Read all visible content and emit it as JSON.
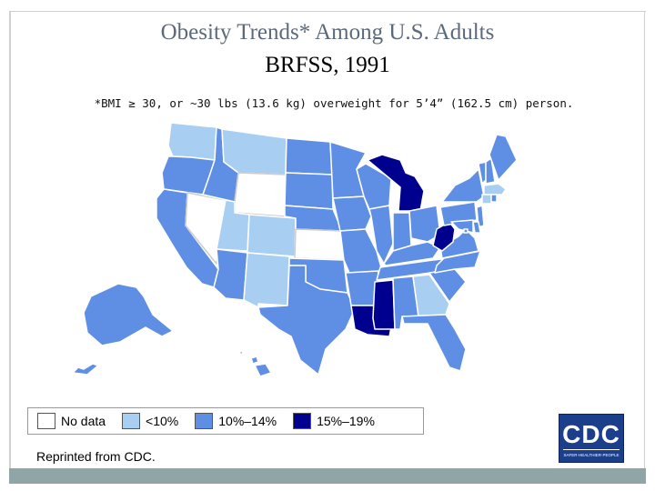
{
  "title": "Obesity Trends* Among U.S. Adults",
  "subtitle": "BRFSS, 1991",
  "footnote": "*BMI ≥ 30, or ~30 lbs (13.6 kg) overweight for 5’4” (162.5 cm) person.",
  "credit": "Reprinted from CDC.",
  "logo": {
    "text": "CDC",
    "tagline": "SAFER·HEALTHIER·PEOPLE"
  },
  "colors": {
    "no_data": "#ffffff",
    "lt10": "#a8cff2",
    "10to14": "#5f8fe4",
    "15to19": "#00008f",
    "border": "#ffffff"
  },
  "legend": [
    {
      "label": "No data",
      "key": "no_data"
    },
    {
      "label": "<10%",
      "key": "lt10"
    },
    {
      "label": "10%–14%",
      "key": "10to14"
    },
    {
      "label": "15%–19%",
      "key": "15to19"
    }
  ],
  "states": {
    "WA": "lt10",
    "OR": "10to14",
    "CA": "10to14",
    "NV": "no_data",
    "ID": "10to14",
    "MT": "lt10",
    "WY": "no_data",
    "UT": "lt10",
    "CO": "lt10",
    "AZ": "10to14",
    "NM": "lt10",
    "ND": "10to14",
    "SD": "10to14",
    "NE": "10to14",
    "KS": "no_data",
    "OK": "10to14",
    "TX": "10to14",
    "MN": "10to14",
    "IA": "10to14",
    "MO": "10to14",
    "AR": "10to14",
    "LA": "15to19",
    "WI": "10to14",
    "IL": "10to14",
    "MI": "15to19",
    "IN": "10to14",
    "OH": "10to14",
    "KY": "10to14",
    "TN": "10to14",
    "MS": "15to19",
    "AL": "10to14",
    "GA": "lt10",
    "FL": "10to14",
    "SC": "10to14",
    "NC": "10to14",
    "VA": "10to14",
    "WV": "15to19",
    "PA": "10to14",
    "NY": "10to14",
    "VT": "10to14",
    "NH": "10to14",
    "ME": "10to14",
    "MA": "lt10",
    "CT": "lt10",
    "RI": "10to14",
    "NJ": "10to14",
    "DE": "10to14",
    "MD": "10to14",
    "DC": "10to14",
    "AK": "10to14",
    "HI": "10to14"
  }
}
